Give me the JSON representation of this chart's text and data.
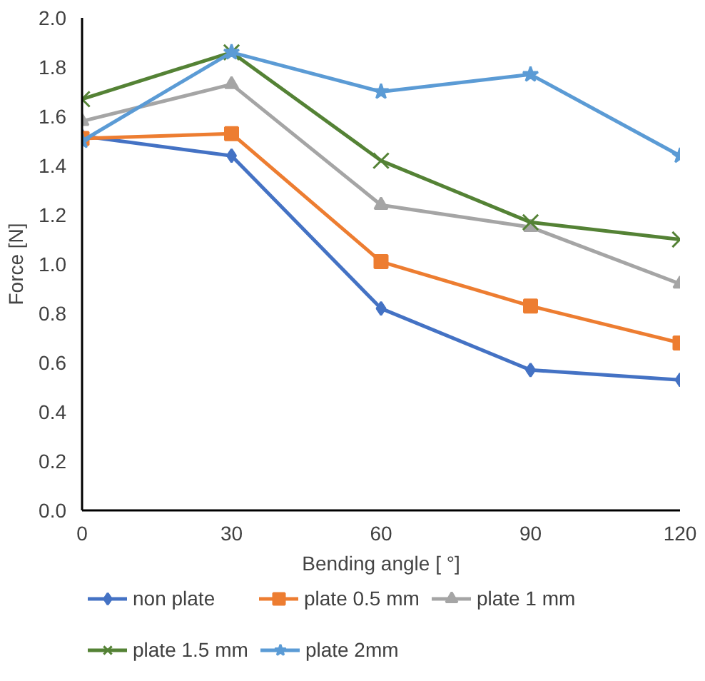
{
  "chart_data": {
    "type": "line",
    "xlabel": "Bending angle [ °]",
    "ylabel": "Force [N]",
    "x": [
      0,
      30,
      60,
      90,
      120
    ],
    "xlim": [
      0,
      120
    ],
    "xticks": [
      0,
      30,
      60,
      90,
      120
    ],
    "ylim": [
      0,
      2.0
    ],
    "yticks": [
      {
        "value": 0,
        "label": "0.0"
      },
      {
        "value": 0.2,
        "label": "0.2"
      },
      {
        "value": 0.4,
        "label": "0.4"
      },
      {
        "value": 0.6,
        "label": "0.6"
      },
      {
        "value": 0.8,
        "label": "0.8"
      },
      {
        "value": 1.0,
        "label": "1.0"
      },
      {
        "value": 1.2,
        "label": "1.2"
      },
      {
        "value": 1.4,
        "label": "1.4"
      },
      {
        "value": 1.6,
        "label": "1.6"
      },
      {
        "value": 1.8,
        "label": "1.8"
      },
      {
        "value": 2.0,
        "label": "2.0"
      }
    ],
    "grid": false,
    "legend": "bottom",
    "line_style": "solid",
    "series": [
      {
        "name": "non plate",
        "color": "#4472c4",
        "marker": "diamond",
        "values": [
          1.52,
          1.44,
          0.82,
          0.57,
          0.53
        ]
      },
      {
        "name": "plate 0.5 mm",
        "color": "#ed7d31",
        "marker": "square",
        "values": [
          1.51,
          1.53,
          1.01,
          0.83,
          0.68
        ]
      },
      {
        "name": "plate 1 mm",
        "color": "#a5a5a5",
        "marker": "triangle",
        "values": [
          1.58,
          1.73,
          1.24,
          1.15,
          0.92
        ]
      },
      {
        "name": "plate 1.5 mm",
        "color": "#548235",
        "marker": "cross",
        "values": [
          1.67,
          1.86,
          1.42,
          1.17,
          1.1
        ]
      },
      {
        "name": "plate 2mm",
        "color": "#5b9bd5",
        "marker": "star",
        "values": [
          1.5,
          1.86,
          1.7,
          1.77,
          1.44
        ]
      }
    ]
  }
}
